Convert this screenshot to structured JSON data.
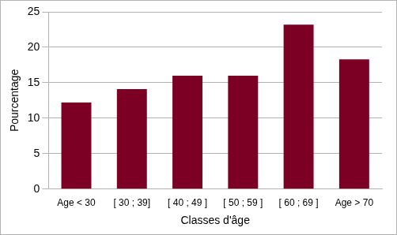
{
  "chart_data": {
    "type": "bar",
    "x_label": "Classes d'âge",
    "y_label": "Pourcentage",
    "categories": [
      "Age < 30",
      "[ 30 ; 39]",
      "[ 40 ; 49 ]",
      "[ 50 ; 59 ]",
      "[ 60 ; 69 ]",
      "Age > 70"
    ],
    "values": [
      12.2,
      14.1,
      16.0,
      16.0,
      23.2,
      18.3
    ],
    "color": "#7b0024",
    "ylim": [
      0,
      25
    ],
    "yticks": [
      0,
      5,
      10,
      15,
      20,
      25
    ],
    "grid": true
  }
}
